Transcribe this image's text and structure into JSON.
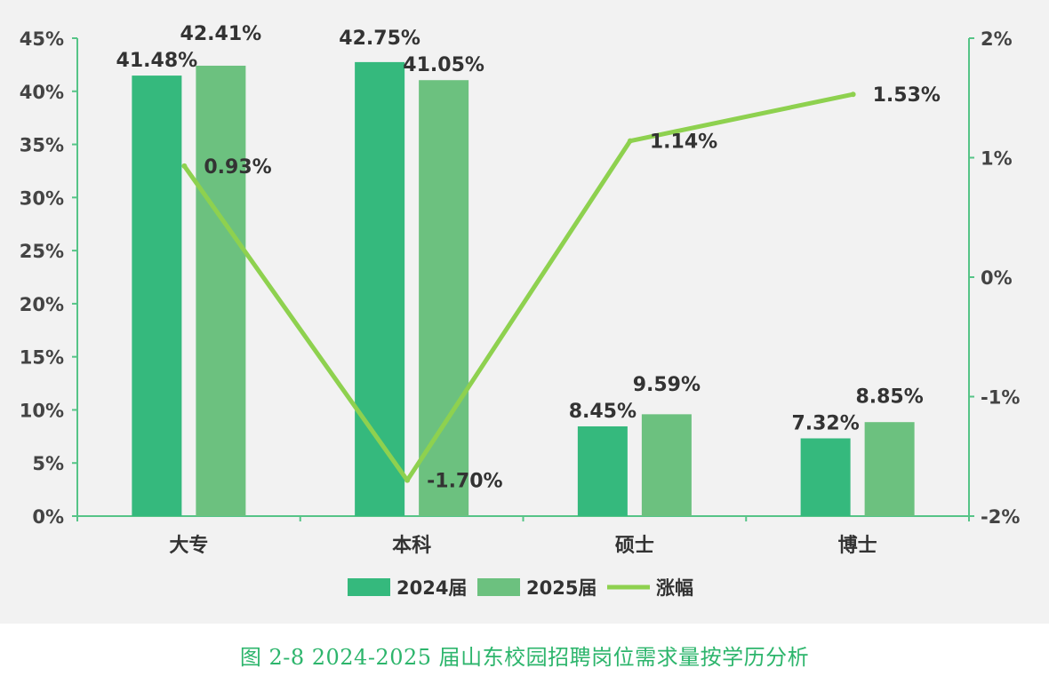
{
  "chart_data": {
    "type": "bar",
    "categories": [
      "大专",
      "本科",
      "硕士",
      "博士"
    ],
    "series": [
      {
        "name": "2024届",
        "type": "bar",
        "axis": "left",
        "values": [
          41.48,
          42.75,
          8.45,
          7.32
        ],
        "labels": [
          "41.48%",
          "42.75%",
          "8.45%",
          "7.32%"
        ],
        "color": "#35b97d"
      },
      {
        "name": "2025届",
        "type": "bar",
        "axis": "left",
        "values": [
          42.41,
          41.05,
          9.59,
          8.85
        ],
        "labels": [
          "42.41%",
          "41.05%",
          "9.59%",
          "8.85%"
        ],
        "color": "#6cc17f"
      },
      {
        "name": "涨幅",
        "type": "line",
        "axis": "right",
        "values": [
          0.93,
          -1.7,
          1.14,
          1.53
        ],
        "labels": [
          "0.93%",
          "-1.70%",
          "1.14%",
          "1.53%"
        ],
        "color": "#8ed14f"
      }
    ],
    "left_axis": {
      "ylim": [
        0,
        45
      ],
      "ticks": [
        0,
        5,
        10,
        15,
        20,
        25,
        30,
        35,
        40,
        45
      ],
      "tick_labels": [
        "0%",
        "5%",
        "10%",
        "15%",
        "20%",
        "25%",
        "30%",
        "35%",
        "40%",
        "45%"
      ]
    },
    "right_axis": {
      "ylim": [
        -2,
        2
      ],
      "ticks": [
        -2,
        -1,
        0,
        1,
        2
      ],
      "tick_labels": [
        "-2%",
        "-1%",
        "0%",
        "1%",
        "2%"
      ],
      "color": "#56c487"
    },
    "axis_color": "#56c487",
    "grid": false,
    "legend_position": "bottom"
  },
  "caption": "图 2-8 2024-2025 届山东校园招聘岗位需求量按学历分析"
}
